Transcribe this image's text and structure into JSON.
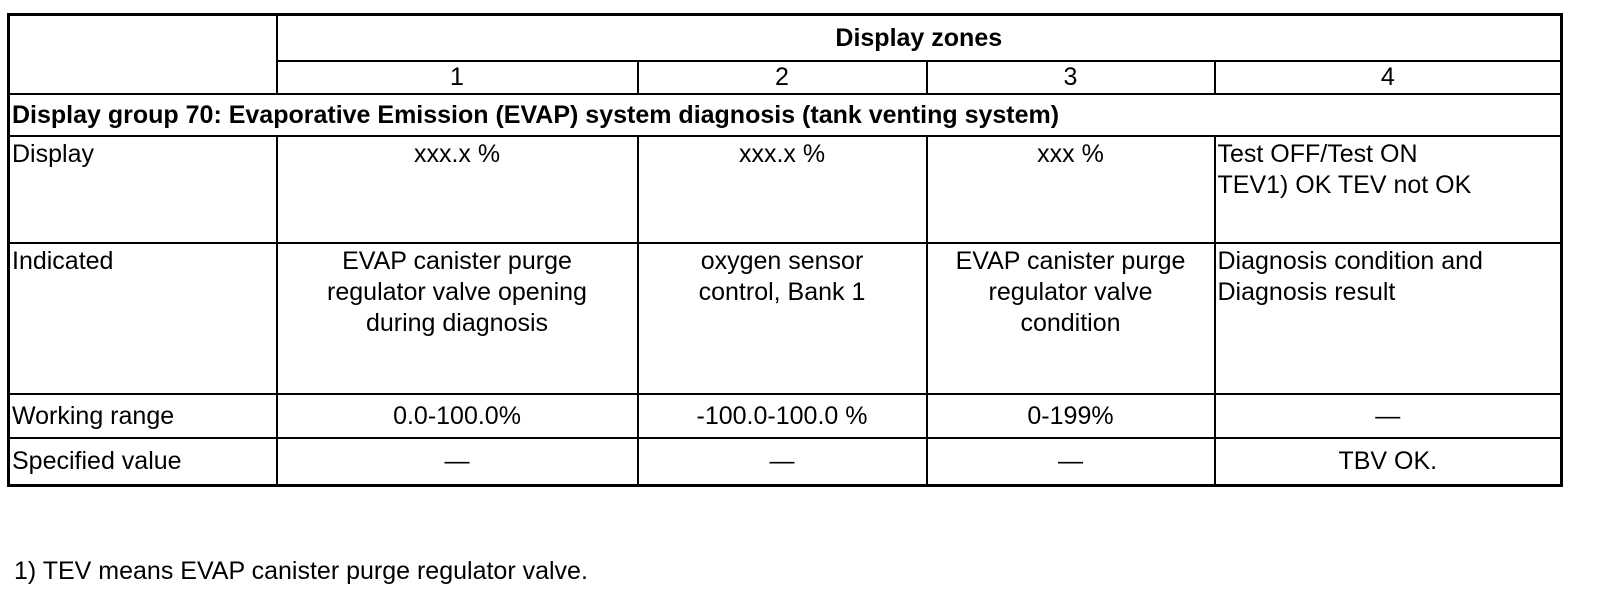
{
  "header": {
    "zones_title": "Display zones",
    "zones": [
      "1",
      "2",
      "3",
      "4"
    ]
  },
  "group_title": "Display group 70: Evaporative Emission (EVAP) system diagnosis (tank venting system)",
  "rows": {
    "display": {
      "label": "Display",
      "zone1": "xxx.x %",
      "zone2": "xxx.x %",
      "zone3": "xxx %",
      "zone4": [
        "Test OFF/Test ON",
        "TEV1) OK TEV not OK"
      ]
    },
    "indicated": {
      "label": "Indicated",
      "zone1": [
        "EVAP canister purge",
        "regulator valve opening",
        "during diagnosis"
      ],
      "zone2": [
        "oxygen sensor",
        "control, Bank 1"
      ],
      "zone3": [
        "EVAP canister purge",
        "regulator valve",
        "condition"
      ],
      "zone4": [
        "Diagnosis condition and",
        "Diagnosis result"
      ]
    },
    "working_range": {
      "label": "Working range",
      "zone1": "0.0-100.0%",
      "zone2": "-100.0-100.0 %",
      "zone3": "0-199%",
      "zone4": "—"
    },
    "specified_value": {
      "label": "Specified value",
      "zone1": "—",
      "zone2": "—",
      "zone3": "—",
      "zone4": "TBV OK."
    }
  },
  "footnote": "1) TEV means EVAP canister purge regulator valve."
}
